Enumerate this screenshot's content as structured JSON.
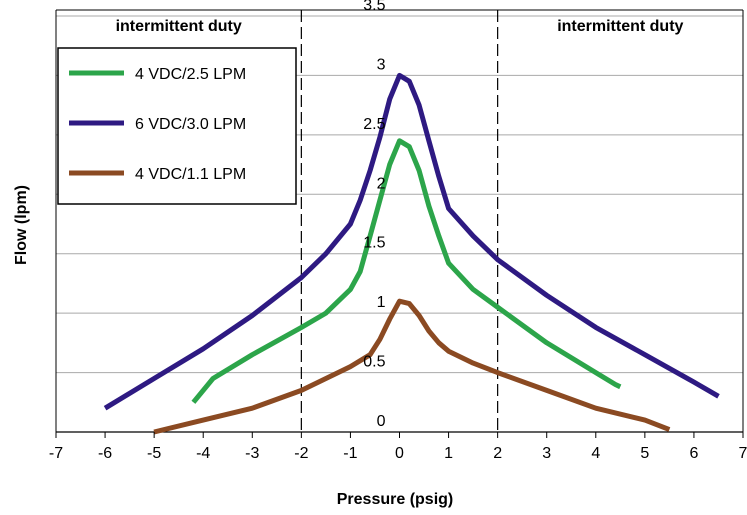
{
  "chart_data": {
    "type": "line",
    "xlabel": "Pressure (psig)",
    "ylabel": "Flow (lpm)",
    "xlim": [
      -7,
      7
    ],
    "ylim": [
      0,
      3.5
    ],
    "xticks": [
      -7,
      -6,
      -5,
      -4,
      -3,
      -2,
      -1,
      0,
      1,
      2,
      3,
      4,
      5,
      6,
      7
    ],
    "xtick_labels": [
      "-7",
      "-6",
      "-5",
      "-4",
      "-3",
      "-2",
      "-1",
      "0",
      "1",
      "2",
      "3",
      "4",
      "5",
      "6",
      "7"
    ],
    "yticks": [
      0,
      0.5,
      1,
      1.5,
      2,
      2.5,
      3,
      3.5
    ],
    "ytick_labels": [
      "0",
      "0.5",
      "1",
      "1.5",
      "2",
      "2.5",
      "3",
      "3.5"
    ],
    "grid": "horizontal",
    "legend_position": "top-left",
    "annotations": [
      {
        "text": "intermittent duty",
        "region": "left",
        "x_range": [
          -7,
          -2
        ]
      },
      {
        "text": "intermittent duty",
        "region": "right",
        "x_range": [
          2,
          7
        ]
      }
    ],
    "vlines": [
      -2,
      2
    ],
    "series": [
      {
        "name": "4 VDC/2.5 LPM",
        "color": "#2ca54a",
        "x": [
          -4.2,
          -3.8,
          -3.0,
          -2.0,
          -1.5,
          -1.0,
          -0.8,
          -0.6,
          -0.4,
          -0.2,
          0.0,
          0.2,
          0.4,
          0.6,
          0.8,
          1.0,
          1.5,
          2.0,
          3.0,
          4.0,
          4.4,
          4.5,
          4.5
        ],
        "y": [
          0.25,
          0.45,
          0.65,
          0.88,
          1.0,
          1.2,
          1.35,
          1.65,
          1.95,
          2.25,
          2.45,
          2.4,
          2.2,
          1.9,
          1.65,
          1.42,
          1.2,
          1.05,
          0.75,
          0.5,
          0.4,
          0.38,
          0.38
        ]
      },
      {
        "name": "6 VDC/3.0 LPM",
        "color": "#2e1a82",
        "x": [
          -6.0,
          -5.0,
          -4.0,
          -3.0,
          -2.0,
          -1.5,
          -1.0,
          -0.8,
          -0.6,
          -0.4,
          -0.2,
          0.0,
          0.2,
          0.4,
          0.6,
          0.8,
          1.0,
          1.5,
          2.0,
          3.0,
          4.0,
          5.0,
          6.0,
          6.5
        ],
        "y": [
          0.2,
          0.45,
          0.7,
          0.98,
          1.3,
          1.5,
          1.75,
          1.95,
          2.2,
          2.48,
          2.8,
          3.0,
          2.95,
          2.75,
          2.45,
          2.15,
          1.88,
          1.65,
          1.45,
          1.15,
          0.88,
          0.65,
          0.42,
          0.3
        ]
      },
      {
        "name": "4 VDC/1.1 LPM",
        "color": "#8b4a22",
        "x": [
          -5.0,
          -4.0,
          -3.0,
          -2.0,
          -1.0,
          -0.6,
          -0.4,
          -0.2,
          0.0,
          0.2,
          0.4,
          0.6,
          0.8,
          1.0,
          1.5,
          2.0,
          3.0,
          4.0,
          5.0,
          5.5
        ],
        "y": [
          0.0,
          0.1,
          0.2,
          0.35,
          0.55,
          0.65,
          0.78,
          0.95,
          1.1,
          1.08,
          0.98,
          0.85,
          0.75,
          0.68,
          0.58,
          0.5,
          0.35,
          0.2,
          0.1,
          0.02
        ]
      }
    ]
  }
}
